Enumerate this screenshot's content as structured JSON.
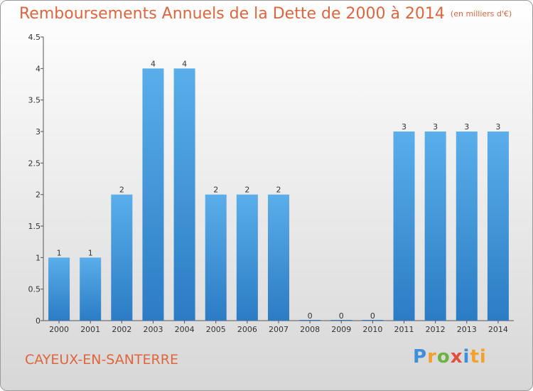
{
  "header": {
    "title": "Remboursements Annuels de la Dette de 2000 à 2014",
    "subtitle": "(en milliers d'€)"
  },
  "footer": {
    "commune": "CAYEUX-EN-SANTERRE",
    "brand_letters": [
      "P",
      "r",
      "o",
      "x",
      "i",
      "ti"
    ]
  },
  "colors": {
    "bar": "#3d93d8",
    "title": "#e0653c"
  },
  "chart_data": {
    "type": "bar",
    "title": "Remboursements Annuels de la Dette de 2000 à 2014",
    "categories": [
      "2000",
      "2001",
      "2002",
      "2003",
      "2004",
      "2005",
      "2006",
      "2007",
      "2008",
      "2009",
      "2010",
      "2011",
      "2012",
      "2013",
      "2014"
    ],
    "values": [
      1,
      1,
      2,
      4,
      4,
      2,
      2,
      2,
      0,
      0,
      0,
      3,
      3,
      3,
      3
    ],
    "data_labels": [
      "1",
      "1",
      "2",
      "4",
      "4",
      "2",
      "2",
      "2",
      "0",
      "0",
      "0",
      "3",
      "3",
      "3",
      "3"
    ],
    "y_ticks": [
      0,
      0.5,
      1,
      1.5,
      2,
      2.5,
      3,
      3.5,
      4,
      4.5
    ],
    "y_tick_labels": [
      "0",
      "0.5",
      "1",
      "1.5",
      "2",
      "2.5",
      "3",
      "3.5",
      "4",
      "4.5"
    ],
    "ylim": [
      0,
      4.5
    ],
    "xlabel": "",
    "ylabel": "",
    "grid": false
  }
}
